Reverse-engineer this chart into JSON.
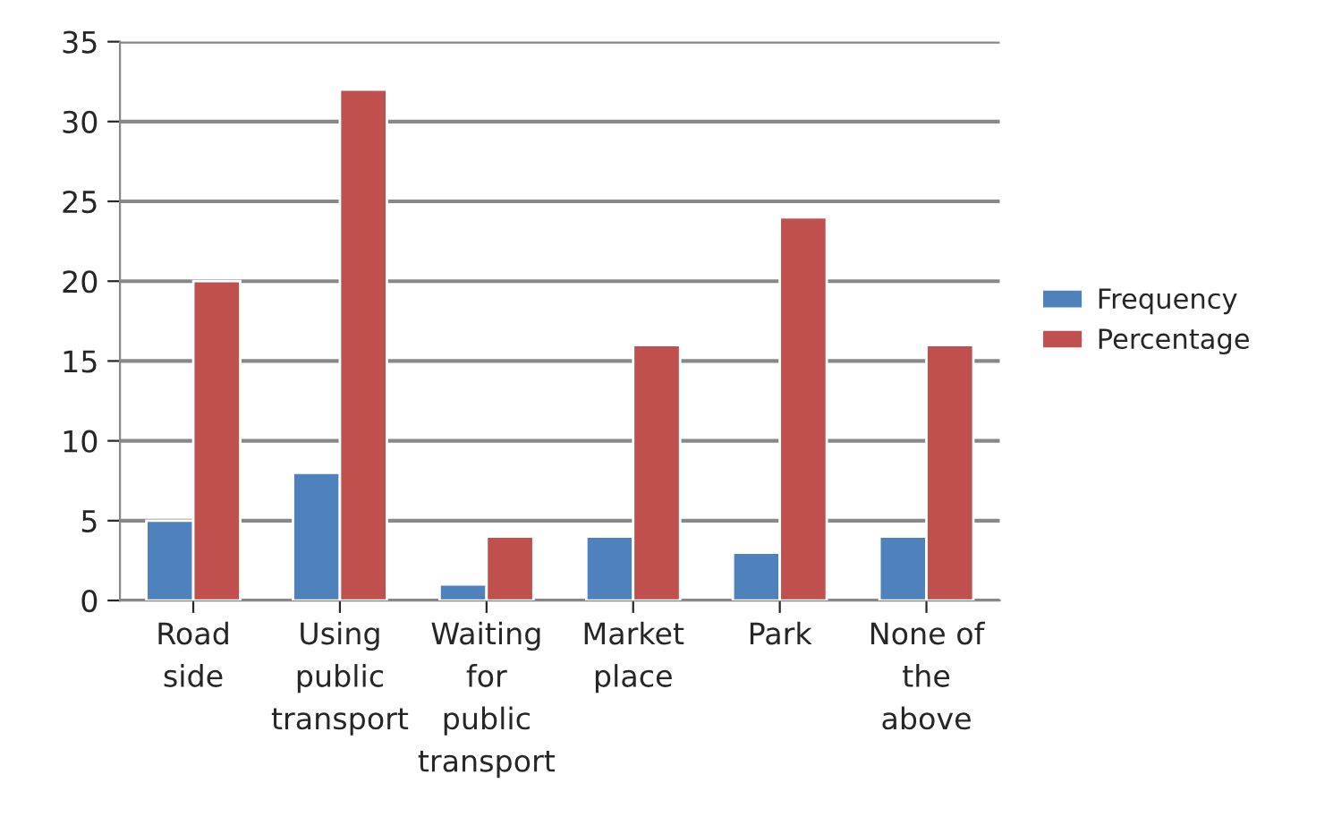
{
  "chart_data": {
    "type": "bar",
    "categories": [
      "Road\nside",
      "Using\npublic\ntransport",
      "Waiting\nfor\npublic\ntransport",
      "Market\nplace",
      "Park",
      "None of\nthe\nabove"
    ],
    "series": [
      {
        "name": "Frequency",
        "color": "#4f81bd",
        "values": [
          5,
          8,
          1,
          4,
          3,
          4
        ]
      },
      {
        "name": "Percentage",
        "color": "#c0504d",
        "values": [
          20,
          32,
          4,
          16,
          24,
          16
        ]
      }
    ],
    "ylim": [
      0,
      35
    ],
    "yticks": [
      0,
      5,
      10,
      15,
      20,
      25,
      30,
      35
    ],
    "grid": "y",
    "legend": "right"
  }
}
